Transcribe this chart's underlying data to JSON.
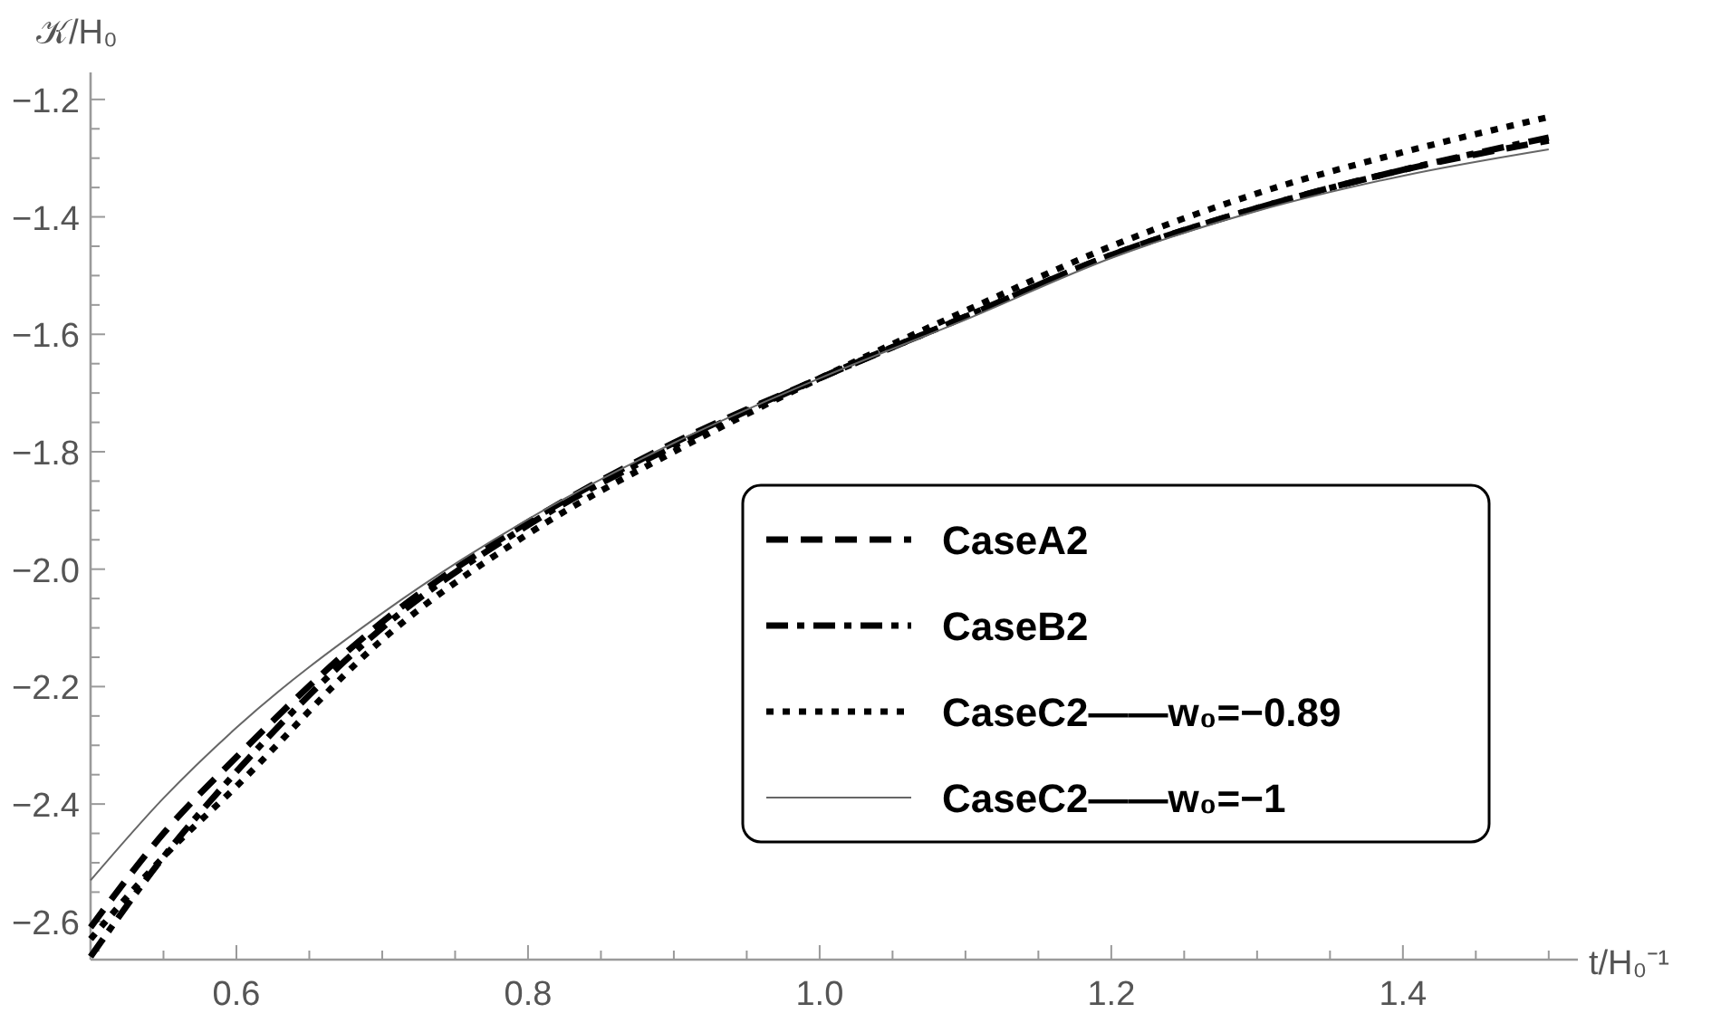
{
  "chart_data": {
    "type": "line",
    "xlabel": "t/H₀⁻¹",
    "ylabel": "𝒦/H₀",
    "x": [
      0.5,
      0.55,
      0.6,
      0.7,
      0.8,
      0.9,
      1.0,
      1.1,
      1.2,
      1.3,
      1.4,
      1.5
    ],
    "xlim": [
      0.5,
      1.52
    ],
    "ylim": [
      -2.665,
      -1.154
    ],
    "xticks": [
      {
        "value": 0.55,
        "label": null
      },
      0.6,
      {
        "value": 0.65,
        "label": null
      },
      {
        "value": 0.7,
        "label": null
      },
      {
        "value": 0.75,
        "label": null
      },
      0.8,
      {
        "value": 0.85,
        "label": null
      },
      {
        "value": 0.9,
        "label": null
      },
      {
        "value": 0.95,
        "label": null
      },
      {
        "value": 1.0,
        "label": "1.0"
      },
      {
        "value": 1.05,
        "label": null
      },
      {
        "value": 1.1,
        "label": null
      },
      {
        "value": 1.15,
        "label": null
      },
      1.2,
      {
        "value": 1.25,
        "label": null
      },
      {
        "value": 1.3,
        "label": null
      },
      {
        "value": 1.35,
        "label": null
      },
      1.4,
      {
        "value": 1.45,
        "label": null
      },
      {
        "value": 1.5,
        "label": null
      }
    ],
    "yticks": [
      {
        "value": -2.65,
        "label": null
      },
      -2.6,
      {
        "value": -2.55,
        "label": null
      },
      {
        "value": -2.5,
        "label": null
      },
      {
        "value": -2.45,
        "label": null
      },
      -2.4,
      {
        "value": -2.35,
        "label": null
      },
      {
        "value": -2.3,
        "label": null
      },
      {
        "value": -2.25,
        "label": null
      },
      -2.2,
      {
        "value": -2.15,
        "label": null
      },
      {
        "value": -2.1,
        "label": null
      },
      {
        "value": -2.05,
        "label": null
      },
      {
        "value": -2.0,
        "label": "−2.0"
      },
      {
        "value": -1.95,
        "label": null
      },
      {
        "value": -1.9,
        "label": null
      },
      {
        "value": -1.85,
        "label": null
      },
      -1.8,
      {
        "value": -1.75,
        "label": null
      },
      {
        "value": -1.7,
        "label": null
      },
      {
        "value": -1.65,
        "label": null
      },
      -1.6,
      {
        "value": -1.55,
        "label": null
      },
      {
        "value": -1.5,
        "label": null
      },
      {
        "value": -1.45,
        "label": null
      },
      -1.4,
      {
        "value": -1.35,
        "label": null
      },
      {
        "value": -1.3,
        "label": null
      },
      {
        "value": -1.25,
        "label": null
      },
      -1.2
    ],
    "legend": "right",
    "grid": false,
    "series": [
      {
        "name": "CaseA2",
        "color": "#000000",
        "line_style": "dashed",
        "values": [
          -2.61,
          -2.45,
          -2.32,
          -2.09,
          -1.92,
          -1.785,
          -1.675,
          -1.57,
          -1.465,
          -1.385,
          -1.32,
          -1.27
        ]
      },
      {
        "name": "CaseB2",
        "color": "#000000",
        "line_style": "dashdot",
        "values": [
          -2.66,
          -2.49,
          -2.345,
          -2.1,
          -1.925,
          -1.79,
          -1.675,
          -1.57,
          -1.465,
          -1.385,
          -1.32,
          -1.265
        ]
      },
      {
        "name": "CaseC2——w₀=−0.89",
        "color": "#000000",
        "line_style": "dotted",
        "values": [
          -2.63,
          -2.49,
          -2.37,
          -2.12,
          -1.94,
          -1.8,
          -1.675,
          -1.56,
          -1.45,
          -1.36,
          -1.29,
          -1.23
        ]
      },
      {
        "name": "CaseC2——w₀=−1",
        "color": "#666666",
        "line_style": "solid",
        "values": [
          -2.53,
          -2.39,
          -2.27,
          -2.075,
          -1.915,
          -1.785,
          -1.675,
          -1.575,
          -1.47,
          -1.39,
          -1.33,
          -1.285
        ]
      }
    ]
  }
}
